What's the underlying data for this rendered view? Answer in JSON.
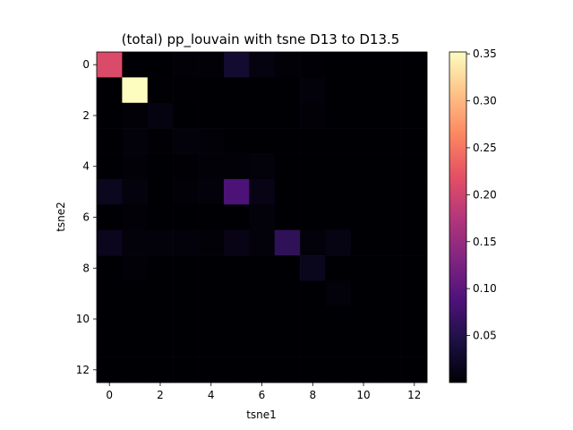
{
  "chart_data": {
    "type": "heatmap",
    "title": "(total) pp_louvain with tsne D13 to D13.5",
    "xlabel": "tsne1",
    "ylabel": "tsne2",
    "x_categories": [
      0,
      1,
      2,
      3,
      4,
      5,
      6,
      7,
      8,
      9,
      10,
      11,
      12
    ],
    "y_categories": [
      0,
      1,
      2,
      3,
      4,
      5,
      6,
      7,
      8,
      9,
      10,
      11,
      12
    ],
    "x_ticks": [
      "0",
      "2",
      "4",
      "6",
      "8",
      "10",
      "12"
    ],
    "y_ticks": [
      "0",
      "2",
      "4",
      "6",
      "8",
      "10",
      "12"
    ],
    "colormap": "magma",
    "vmin": 0.0,
    "vmax": 0.352,
    "colorbar_ticks": [
      "0.05",
      "0.10",
      "0.15",
      "0.20",
      "0.25",
      "0.30",
      "0.35"
    ],
    "colorbar_tick_values": [
      0.05,
      0.1,
      0.15,
      0.2,
      0.25,
      0.3,
      0.35
    ],
    "values": [
      [
        0.21,
        0.0,
        0.0,
        0.002,
        0.003,
        0.03,
        0.008,
        0.002,
        0.001,
        0.0,
        0.0,
        0.0,
        0.0
      ],
      [
        0.0,
        0.352,
        0.001,
        0.001,
        0.0,
        0.0,
        0.0,
        0.0,
        0.004,
        0.0,
        0.0,
        0.0,
        0.0
      ],
      [
        0.0,
        0.003,
        0.008,
        0.0,
        0.0,
        0.0,
        0.0,
        0.0,
        0.003,
        0.0,
        0.0,
        0.0,
        0.0
      ],
      [
        0.0,
        0.005,
        0.001,
        0.004,
        0.002,
        0.0,
        0.0,
        0.0,
        0.0,
        0.0,
        0.0,
        0.0,
        0.0
      ],
      [
        0.0,
        0.003,
        0.0,
        0.001,
        0.003,
        0.003,
        0.004,
        0.0,
        0.0,
        0.0,
        0.0,
        0.0,
        0.0
      ],
      [
        0.018,
        0.006,
        0.0,
        0.003,
        0.005,
        0.085,
        0.012,
        0.0,
        0.0,
        0.0,
        0.0,
        0.0,
        0.0
      ],
      [
        0.0,
        0.002,
        0.0,
        0.0,
        0.0,
        0.0,
        0.005,
        0.0,
        0.0,
        0.0,
        0.0,
        0.0,
        0.0
      ],
      [
        0.017,
        0.004,
        0.004,
        0.004,
        0.003,
        0.012,
        0.004,
        0.06,
        0.005,
        0.01,
        0.0,
        0.0,
        0.0
      ],
      [
        0.0,
        0.003,
        0.0,
        0.0,
        0.0,
        0.0,
        0.0,
        0.0,
        0.016,
        0.0,
        0.0,
        0.0,
        0.0
      ],
      [
        0.0,
        0.0,
        0.0,
        0.0,
        0.0,
        0.0,
        0.0,
        0.0,
        0.0,
        0.004,
        0.0,
        0.0,
        0.0
      ],
      [
        0.0,
        0.0,
        0.0,
        0.0,
        0.0,
        0.0,
        0.0,
        0.0,
        0.0,
        0.0,
        0.0,
        0.0,
        0.0
      ],
      [
        0.0,
        0.0,
        0.0,
        0.0,
        0.0,
        0.0,
        0.0,
        0.0,
        0.0,
        0.0,
        0.0,
        0.0,
        0.0
      ],
      [
        0.0,
        0.0,
        0.0,
        0.0,
        0.0,
        0.0,
        0.0,
        0.0,
        0.0,
        0.0,
        0.0,
        0.0,
        0.0
      ]
    ]
  }
}
